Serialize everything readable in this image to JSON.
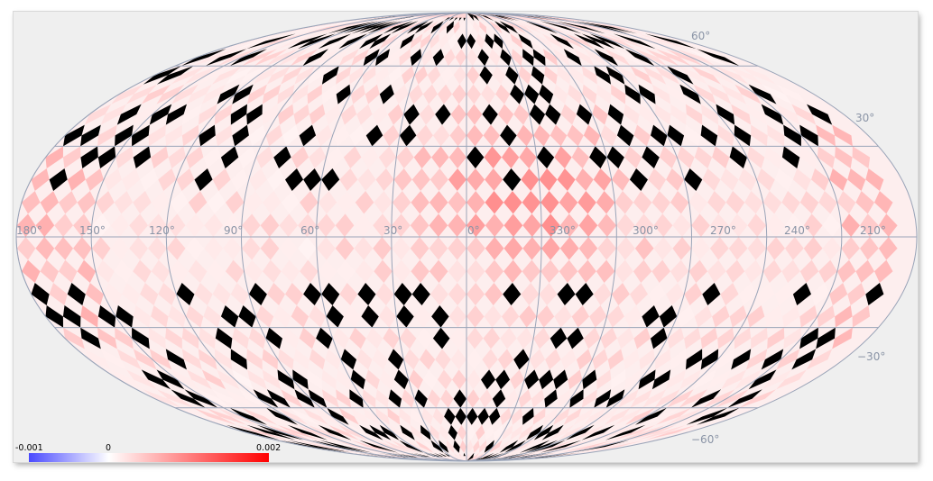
{
  "map": {
    "projection": "Mollweide",
    "longitude_labels": [
      {
        "value": 180,
        "text": "180°"
      },
      {
        "value": 150,
        "text": "150°"
      },
      {
        "value": 120,
        "text": "120°"
      },
      {
        "value": 90,
        "text": "90°"
      },
      {
        "value": 60,
        "text": "60°"
      },
      {
        "value": 30,
        "text": "30°"
      },
      {
        "value": 0,
        "text": "0°"
      },
      {
        "value": 330,
        "text": "330°"
      },
      {
        "value": 300,
        "text": "300°"
      },
      {
        "value": 270,
        "text": "270°"
      },
      {
        "value": 240,
        "text": "240°"
      },
      {
        "value": 210,
        "text": "210°"
      }
    ],
    "latitude_labels": [
      {
        "value": 60,
        "text": "60°"
      },
      {
        "value": 30,
        "text": "30°"
      },
      {
        "value": -30,
        "text": "−30°"
      },
      {
        "value": -60,
        "text": "−60°"
      }
    ],
    "colors": {
      "graticule": "#9aa4b8",
      "masked": "#000000",
      "background": "#efefef",
      "low": "#4a4aff",
      "mid": "#ffffff",
      "high": "#ff0000"
    }
  },
  "colorbar": {
    "min_label": "-0.001",
    "mid_label": "0",
    "max_label": "0.002"
  }
}
